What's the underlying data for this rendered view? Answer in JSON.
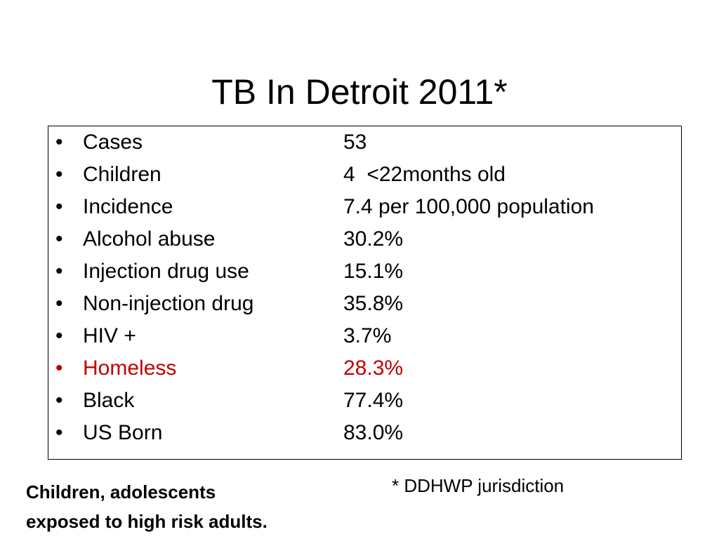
{
  "title": "TB In Detroit 2011*",
  "stats": [
    {
      "label": "Cases",
      "value": "53",
      "highlight": false
    },
    {
      "label": "Children",
      "value": "4  <22months old",
      "highlight": false
    },
    {
      "label": "Incidence",
      "value": "7.4 per 100,000 population",
      "highlight": false
    },
    {
      "label": "Alcohol abuse",
      "value": "30.2%",
      "highlight": false
    },
    {
      "label": "Injection drug use",
      "value": "15.1%",
      "highlight": false
    },
    {
      "label": "Non-injection drug",
      "value": "35.8%",
      "highlight": false
    },
    {
      "label": "HIV +",
      "value": "3.7%",
      "highlight": false
    },
    {
      "label": "Homeless",
      "value": "28.3%",
      "highlight": true
    },
    {
      "label": "Black",
      "value": "77.4%",
      "highlight": false
    },
    {
      "label": "US Born",
      "value": "83.0%",
      "highlight": false
    }
  ],
  "bullet_char": "•",
  "highlight_color": "#c00000",
  "footnote": "* DDHWP jurisdiction",
  "note": {
    "line1": "Children, adolescents",
    "line2": "exposed to high risk adults."
  }
}
